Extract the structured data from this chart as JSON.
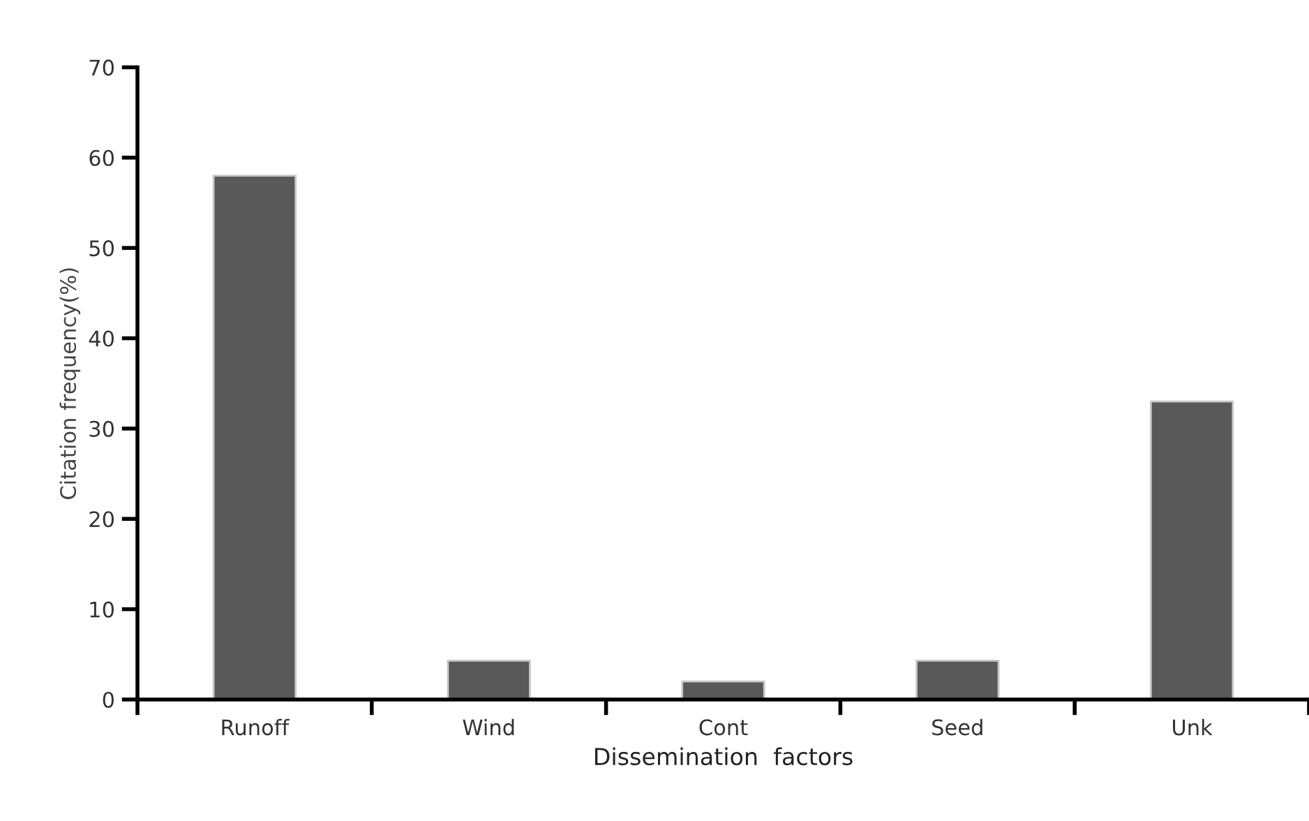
{
  "chart_data": {
    "type": "bar",
    "xlabel": "Dissemination  factors",
    "ylabel": "Citation frequency(%)",
    "categories": [
      "Runoff",
      "Wind",
      "Cont",
      "Seed",
      "Unk"
    ],
    "values": [
      58,
      4.3,
      2,
      4.3,
      33
    ],
    "color": "#595959",
    "ylim": [
      0,
      70
    ],
    "yticks": [
      0,
      10,
      20,
      30,
      40,
      50,
      60,
      70
    ],
    "grid": false,
    "legend": false
  }
}
